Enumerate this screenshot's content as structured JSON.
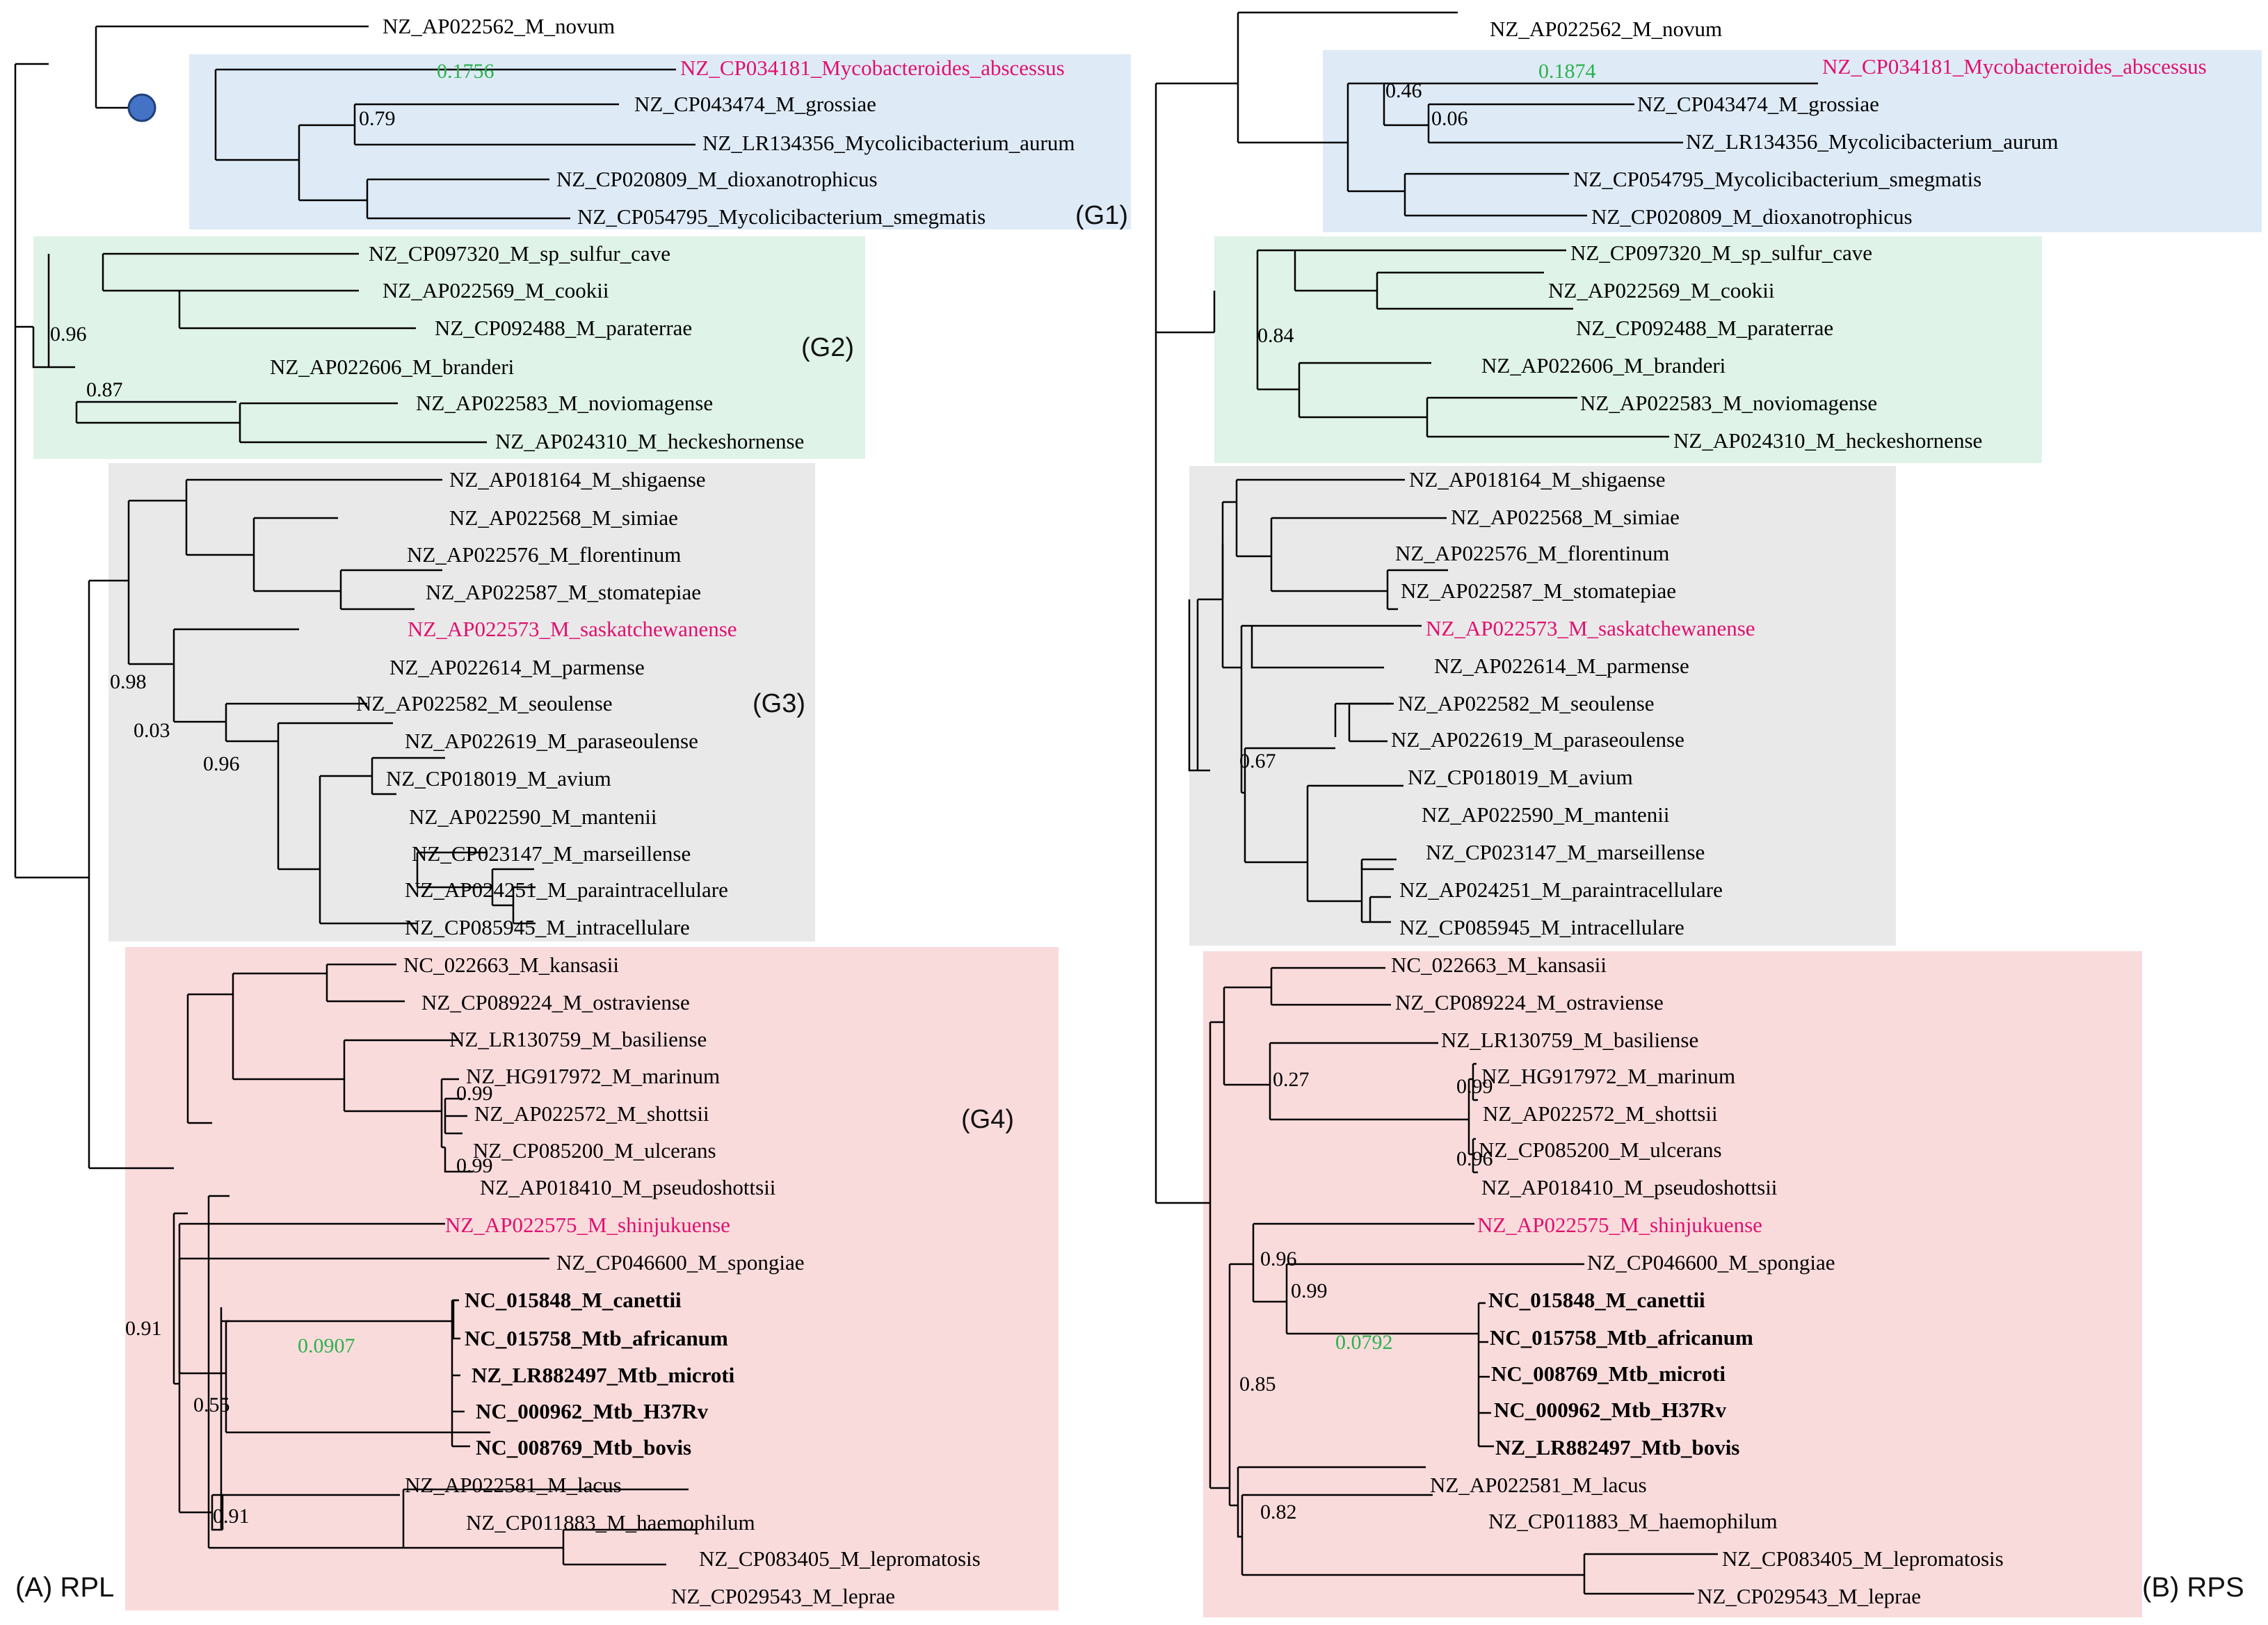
{
  "colors": {
    "highlight_label": "#e0106e",
    "branch_length_label": "#2bb24c",
    "g1_box": "#deebf7",
    "g2_box": "#dff3e8",
    "g3_box": "#e9e9e9",
    "g4_box": "#fadbdc",
    "root_node": "#4472c4"
  },
  "panels": [
    {
      "title": "(A) RPL",
      "groups": [
        "(G1)",
        "(G2)",
        "(G3)",
        "(G4)"
      ],
      "taxa": [
        "NZ_AP022562_M_novum",
        "NZ_CP034181_Mycobacteroides_abscessus",
        "NZ_CP043474_M_grossiae",
        "NZ_LR134356_Mycolicibacterium_aurum",
        "NZ_CP020809_M_dioxanotrophicus",
        "NZ_CP054795_Mycolicibacterium_smegmatis",
        "NZ_CP097320_M_sp_sulfur_cave",
        "NZ_AP022569_M_cookii",
        "NZ_CP092488_M_paraterrae",
        "NZ_AP022606_M_branderi",
        "NZ_AP022583_M_noviomagense",
        "NZ_AP024310_M_heckeshornense",
        "NZ_AP018164_M_shigaense",
        "NZ_AP022568_M_simiae",
        "NZ_AP022576_M_florentinum",
        "NZ_AP022587_M_stomatepiae",
        "NZ_AP022573_M_saskatchewanense",
        "NZ_AP022614_M_parmense",
        "NZ_AP022582_M_seoulense",
        "NZ_AP022619_M_paraseoulense",
        "NZ_CP018019_M_avium",
        "NZ_AP022590_M_mantenii",
        "NZ_CP023147_M_marseillense",
        "NZ_AP024251_M_paraintracellulare",
        "NZ_CP085945_M_intracellulare",
        "NC_022663_M_kansasii",
        "NZ_CP089224_M_ostraviense",
        "NZ_LR130759_M_basiliense",
        "NZ_HG917972_M_marinum",
        "NZ_AP022572_M_shottsii",
        "NZ_CP085200_M_ulcerans",
        "NZ_AP018410_M_pseudoshottsii",
        "NZ_AP022575_M_shinjukuense",
        "NZ_CP046600_M_spongiae",
        "NC_015848_M_canettii",
        "NC_015758_Mtb_africanum",
        "NZ_LR882497_Mtb_microti",
        "NC_000962_Mtb_H37Rv",
        "NC_008769_Mtb_bovis",
        "NZ_AP022581_M_lacus",
        "NZ_CP011883_M_haemophilum",
        "NZ_CP083405_M_lepromatosis",
        "NZ_CP029543_M_leprae"
      ],
      "support_values": [
        "0.79",
        "0.96",
        "0.87",
        "0.98",
        "0.03",
        "0.96",
        "0.99",
        "0.99",
        "0.91",
        "0.55",
        "0.91"
      ],
      "branch_length_labels": [
        "0.1756",
        "0.0907"
      ]
    },
    {
      "title": "(B) RPS",
      "taxa": [
        "NZ_AP022562_M_novum",
        "NZ_CP034181_Mycobacteroides_abscessus",
        "NZ_CP043474_M_grossiae",
        "NZ_LR134356_Mycolicibacterium_aurum",
        "NZ_CP054795_Mycolicibacterium_smegmatis",
        "NZ_CP020809_M_dioxanotrophicus",
        "NZ_CP097320_M_sp_sulfur_cave",
        "NZ_AP022569_M_cookii",
        "NZ_CP092488_M_paraterrae",
        "NZ_AP022606_M_branderi",
        "NZ_AP022583_M_noviomagense",
        "NZ_AP024310_M_heckeshornense",
        "NZ_AP018164_M_shigaense",
        "NZ_AP022568_M_simiae",
        "NZ_AP022576_M_florentinum",
        "NZ_AP022587_M_stomatepiae",
        "NZ_AP022573_M_saskatchewanense",
        "NZ_AP022614_M_parmense",
        "NZ_AP022582_M_seoulense",
        "NZ_AP022619_M_paraseoulense",
        "NZ_CP018019_M_avium",
        "NZ_AP022590_M_mantenii",
        "NZ_CP023147_M_marseillense",
        "NZ_AP024251_M_paraintracellulare",
        "NZ_CP085945_M_intracellulare",
        "NC_022663_M_kansasii",
        "NZ_CP089224_M_ostraviense",
        "NZ_LR130759_M_basiliense",
        "NZ_HG917972_M_marinum",
        "NZ_AP022572_M_shottsii",
        "NZ_CP085200_M_ulcerans",
        "NZ_AP018410_M_pseudoshottsii",
        "NZ_AP022575_M_shinjukuense",
        "NZ_CP046600_M_spongiae",
        "NC_015848_M_canettii",
        "NC_015758_Mtb_africanum",
        "NC_008769_Mtb_microti",
        "NC_000962_Mtb_H37Rv",
        "NZ_LR882497_Mtb_bovis",
        "NZ_AP022581_M_lacus",
        "NZ_CP011883_M_haemophilum",
        "NZ_CP083405_M_lepromatosis",
        "NZ_CP029543_M_leprae"
      ],
      "support_values": [
        "0.46",
        "0.06",
        "0.84",
        "0.67",
        "0.27",
        "0.99",
        "0.96",
        "0.96",
        "0.99",
        "0.85",
        "0.82"
      ],
      "branch_length_labels": [
        "0.1874",
        "0.0792"
      ]
    }
  ]
}
